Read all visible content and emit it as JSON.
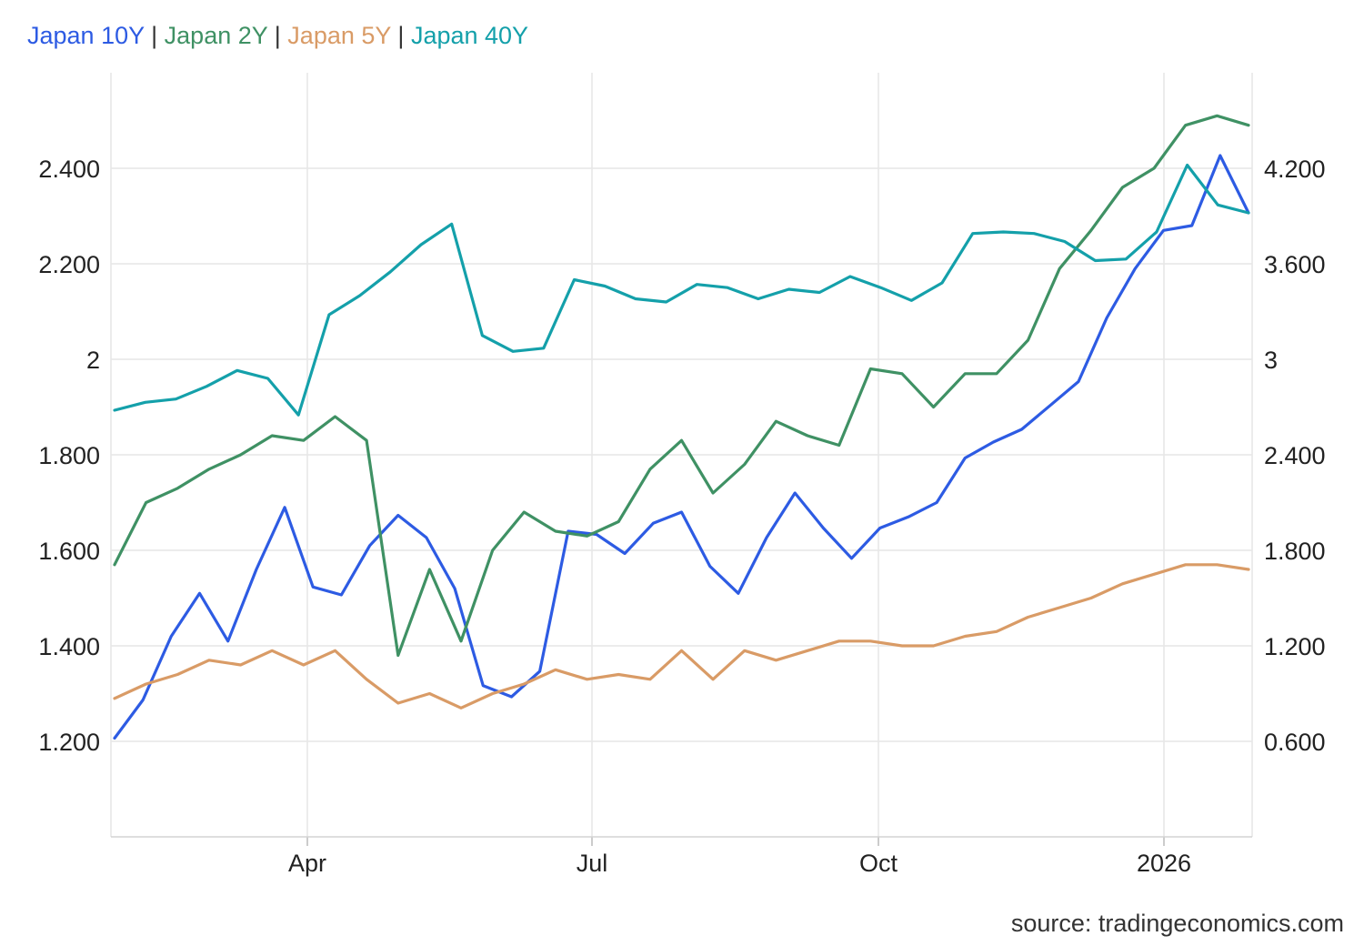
{
  "chart_data": {
    "type": "line",
    "grid": true,
    "legend_position": "top-left",
    "x_ticks": [
      "Apr",
      "Jul",
      "Oct",
      "2026"
    ],
    "y_left": {
      "ticks": [
        "1.200",
        "1.400",
        "1.600",
        "1.800",
        "2",
        "2.200",
        "2.400"
      ],
      "range": [
        1.0,
        2.6
      ]
    },
    "y_right": {
      "ticks": [
        "0.600",
        "1.200",
        "1.800",
        "2.400",
        "3",
        "3.600",
        "4.200"
      ],
      "range": [
        0.0,
        4.8
      ]
    },
    "series": [
      {
        "name": "Japan 10Y",
        "axis": "right",
        "color": "#2d5be3",
        "values": [
          0.62,
          0.86,
          1.26,
          1.53,
          1.23,
          1.68,
          2.07,
          1.57,
          1.52,
          1.83,
          2.02,
          1.88,
          1.56,
          0.95,
          0.88,
          1.04,
          1.92,
          1.9,
          1.78,
          1.97,
          2.04,
          1.7,
          1.53,
          1.88,
          2.16,
          1.94,
          1.75,
          1.94,
          2.01,
          2.1,
          2.38,
          2.48,
          2.56,
          2.71,
          2.86,
          3.26,
          3.57,
          3.81,
          3.84,
          4.28,
          3.92
        ]
      },
      {
        "name": "Japan 2Y",
        "axis": "left",
        "color": "#3f9164",
        "values": [
          1.57,
          1.7,
          1.73,
          1.77,
          1.8,
          1.84,
          1.83,
          1.88,
          1.83,
          1.38,
          1.56,
          1.41,
          1.6,
          1.68,
          1.64,
          1.63,
          1.66,
          1.77,
          1.83,
          1.72,
          1.78,
          1.87,
          1.84,
          1.82,
          1.98,
          1.97,
          1.9,
          1.97,
          1.97,
          2.04,
          2.19,
          2.27,
          2.36,
          2.4,
          2.49,
          2.51,
          2.49
        ]
      },
      {
        "name": "Japan 5Y",
        "axis": "left",
        "color": "#d99b66",
        "values": [
          1.29,
          1.32,
          1.34,
          1.37,
          1.36,
          1.39,
          1.36,
          1.39,
          1.33,
          1.28,
          1.3,
          1.27,
          1.3,
          1.32,
          1.35,
          1.33,
          1.34,
          1.33,
          1.39,
          1.33,
          1.39,
          1.37,
          1.39,
          1.41,
          1.41,
          1.4,
          1.4,
          1.42,
          1.43,
          1.46,
          1.48,
          1.5,
          1.53,
          1.55,
          1.57,
          1.57,
          1.56
        ]
      },
      {
        "name": "Japan 40Y",
        "axis": "right",
        "color": "#14a0aa",
        "values": [
          2.68,
          2.73,
          2.75,
          2.83,
          2.93,
          2.88,
          2.65,
          3.28,
          3.4,
          3.55,
          3.72,
          3.85,
          3.15,
          3.05,
          3.07,
          3.5,
          3.46,
          3.38,
          3.36,
          3.47,
          3.45,
          3.38,
          3.44,
          3.42,
          3.52,
          3.45,
          3.37,
          3.48,
          3.79,
          3.8,
          3.79,
          3.74,
          3.62,
          3.63,
          3.8,
          4.22,
          3.97,
          3.92
        ]
      }
    ]
  },
  "source": "source: tradingeconomics.com"
}
